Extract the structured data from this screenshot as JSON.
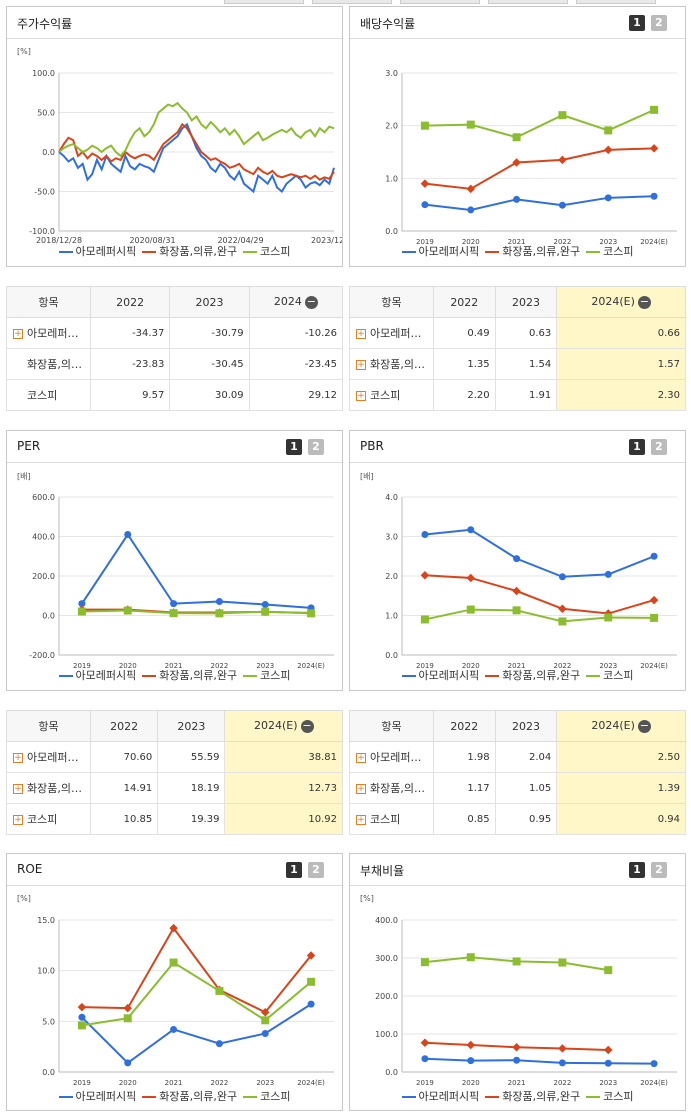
{
  "colors": {
    "series1": "#2f6fde",
    "series2": "#d9441a",
    "series3": "#8cbd2f"
  },
  "legend": [
    "아모레퍼시픽",
    "화장품,의류,완구",
    "코스피"
  ],
  "panels": {
    "stock": {
      "title": "주가수익률",
      "unit": "[%]"
    },
    "dividend": {
      "title": "배당수익률",
      "unit": ""
    },
    "per": {
      "title": "PER",
      "unit": "[배]"
    },
    "pbr": {
      "title": "PBR",
      "unit": "[배]"
    },
    "roe": {
      "title": "ROE",
      "unit": "[%]"
    },
    "debt": {
      "title": "부채비율",
      "unit": "[%]"
    }
  },
  "pager": {
    "p1": "1",
    "p2": "2"
  },
  "tables": {
    "stock": {
      "header": [
        "항목",
        "2022",
        "2023",
        "2024"
      ],
      "rows": [
        {
          "name": "아모레퍼…",
          "plus": true,
          "values": [
            "-34.37",
            "-30.79",
            "-10.26"
          ]
        },
        {
          "name": "화장품,의…",
          "plus": false,
          "values": [
            "-23.83",
            "-30.45",
            "-23.45"
          ]
        },
        {
          "name": "코스피",
          "plus": false,
          "values": [
            "9.57",
            "30.09",
            "29.12"
          ]
        }
      ]
    },
    "dividend": {
      "header": [
        "항목",
        "2022",
        "2023",
        "2024(E)"
      ],
      "rows": [
        {
          "name": "아모레퍼…",
          "plus": true,
          "values": [
            "0.49",
            "0.63",
            "0.66"
          ]
        },
        {
          "name": "화장품,의…",
          "plus": true,
          "values": [
            "1.35",
            "1.54",
            "1.57"
          ]
        },
        {
          "name": "코스피",
          "plus": true,
          "values": [
            "2.20",
            "1.91",
            "2.30"
          ]
        }
      ]
    },
    "per": {
      "header": [
        "항목",
        "2022",
        "2023",
        "2024(E)"
      ],
      "rows": [
        {
          "name": "아모레퍼…",
          "plus": true,
          "values": [
            "70.60",
            "55.59",
            "38.81"
          ]
        },
        {
          "name": "화장품,의…",
          "plus": true,
          "values": [
            "14.91",
            "18.19",
            "12.73"
          ]
        },
        {
          "name": "코스피",
          "plus": true,
          "values": [
            "10.85",
            "19.39",
            "10.92"
          ]
        }
      ]
    },
    "pbr": {
      "header": [
        "항목",
        "2022",
        "2023",
        "2024(E)"
      ],
      "rows": [
        {
          "name": "아모레퍼…",
          "plus": true,
          "values": [
            "1.98",
            "2.04",
            "2.50"
          ]
        },
        {
          "name": "화장품,의…",
          "plus": true,
          "values": [
            "1.17",
            "1.05",
            "1.39"
          ]
        },
        {
          "name": "코스피",
          "plus": true,
          "values": [
            "0.85",
            "0.95",
            "0.94"
          ]
        }
      ]
    }
  },
  "chart_data": [
    {
      "id": "stock",
      "type": "line",
      "title": "주가수익률",
      "ylabel": "[%]",
      "ylim": [
        -100,
        100
      ],
      "yticks": [
        "100.0",
        "50.0",
        "0.0",
        "-50.0",
        "-100.0"
      ],
      "xticks": [
        "2018/12/28",
        "2020/08/31",
        "2022/04/29",
        "2023/12/28"
      ],
      "series": [
        {
          "name": "아모레퍼시픽",
          "values": [
            0,
            -5,
            -12,
            -8,
            -20,
            -15,
            -35,
            -28,
            -10,
            -22,
            -5,
            -15,
            -20,
            -25,
            -5,
            -18,
            -22,
            -15,
            -18,
            -20,
            -25,
            -10,
            5,
            10,
            15,
            20,
            30,
            35,
            20,
            5,
            -5,
            -10,
            -20,
            -25,
            -15,
            -20,
            -30,
            -35,
            -25,
            -40,
            -45,
            -50,
            -30,
            -35,
            -40,
            -30,
            -45,
            -50,
            -40,
            -35,
            -30,
            -35,
            -45,
            -40,
            -38,
            -42,
            -35,
            -40,
            -20
          ]
        },
        {
          "name": "화장품,의류,완구",
          "values": [
            0,
            10,
            18,
            15,
            -5,
            0,
            -8,
            -2,
            -5,
            -10,
            -5,
            -12,
            -8,
            -10,
            0,
            -5,
            -8,
            -5,
            -3,
            -5,
            -10,
            0,
            10,
            15,
            20,
            25,
            35,
            30,
            20,
            10,
            0,
            -5,
            -10,
            -8,
            -12,
            -15,
            -20,
            -18,
            -15,
            -22,
            -25,
            -28,
            -20,
            -25,
            -28,
            -24,
            -30,
            -32,
            -30,
            -28,
            -30,
            -32,
            -30,
            -34,
            -30,
            -35,
            -32,
            -34,
            -25
          ]
        },
        {
          "name": "코스피",
          "values": [
            0,
            5,
            8,
            10,
            5,
            0,
            3,
            8,
            5,
            0,
            5,
            8,
            0,
            -5,
            2,
            15,
            25,
            30,
            20,
            25,
            35,
            50,
            55,
            60,
            58,
            62,
            55,
            50,
            40,
            45,
            35,
            30,
            38,
            32,
            25,
            30,
            22,
            28,
            20,
            10,
            15,
            20,
            25,
            15,
            18,
            22,
            25,
            28,
            25,
            30,
            22,
            18,
            25,
            28,
            20,
            30,
            25,
            32,
            30
          ]
        }
      ]
    },
    {
      "id": "dividend",
      "type": "line",
      "ylim": [
        0,
        3
      ],
      "yticks": [
        "3.0",
        "2.0",
        "1.0",
        "0.0"
      ],
      "categories": [
        "2019",
        "2020",
        "2021",
        "2022",
        "2023",
        "2024(E)"
      ],
      "series": [
        {
          "name": "아모레퍼시픽",
          "values": [
            0.5,
            0.4,
            0.6,
            0.49,
            0.63,
            0.66
          ]
        },
        {
          "name": "화장품,의류,완구",
          "values": [
            0.9,
            0.8,
            1.3,
            1.35,
            1.54,
            1.57
          ]
        },
        {
          "name": "코스피",
          "values": [
            2.0,
            2.02,
            1.78,
            2.2,
            1.91,
            2.3
          ]
        }
      ]
    },
    {
      "id": "per",
      "type": "line",
      "ylim": [
        -200,
        600
      ],
      "yticks": [
        "600.0",
        "400.0",
        "200.0",
        "0.0",
        "-200.0"
      ],
      "categories": [
        "2019",
        "2020",
        "2021",
        "2022",
        "2023",
        "2024(E)"
      ],
      "series": [
        {
          "name": "아모레퍼시픽",
          "values": [
            60,
            410,
            60,
            70.6,
            55.59,
            38.81
          ]
        },
        {
          "name": "화장품,의류,완구",
          "values": [
            30,
            30,
            15,
            14.91,
            18.19,
            12.73
          ]
        },
        {
          "name": "코스피",
          "values": [
            20,
            25,
            12,
            10.85,
            19.39,
            10.92
          ]
        }
      ]
    },
    {
      "id": "pbr",
      "type": "line",
      "ylim": [
        0,
        4
      ],
      "yticks": [
        "4.0",
        "3.0",
        "2.0",
        "1.0",
        "0.0"
      ],
      "categories": [
        "2019",
        "2020",
        "2021",
        "2022",
        "2023",
        "2024(E)"
      ],
      "series": [
        {
          "name": "아모레퍼시픽",
          "values": [
            3.05,
            3.17,
            2.44,
            1.98,
            2.04,
            2.5
          ]
        },
        {
          "name": "화장품,의류,완구",
          "values": [
            2.02,
            1.95,
            1.62,
            1.17,
            1.05,
            1.39
          ]
        },
        {
          "name": "코스피",
          "values": [
            0.9,
            1.15,
            1.13,
            0.85,
            0.95,
            0.94
          ]
        }
      ]
    },
    {
      "id": "roe",
      "type": "line",
      "ylim": [
        0,
        15
      ],
      "yticks": [
        "15.0",
        "10.0",
        "5.0",
        "0.0"
      ],
      "categories": [
        "2019",
        "2020",
        "2021",
        "2022",
        "2023",
        "2024(E)"
      ],
      "series": [
        {
          "name": "아모레퍼시픽",
          "values": [
            5.4,
            0.9,
            4.2,
            2.8,
            3.8,
            6.7
          ]
        },
        {
          "name": "화장품,의류,완구",
          "values": [
            6.4,
            6.3,
            14.2,
            8.1,
            5.9,
            11.5
          ]
        },
        {
          "name": "코스피",
          "values": [
            4.6,
            5.3,
            10.8,
            8.0,
            5.1,
            8.9
          ]
        }
      ]
    },
    {
      "id": "debt",
      "type": "line",
      "ylim": [
        0,
        400
      ],
      "yticks": [
        "400.0",
        "300.0",
        "200.0",
        "100.0",
        "0.0"
      ],
      "categories": [
        "2019",
        "2020",
        "2021",
        "2022",
        "2023",
        "2024(E)"
      ],
      "series": [
        {
          "name": "아모레퍼시픽",
          "values": [
            35,
            30,
            31,
            24,
            23,
            22
          ]
        },
        {
          "name": "화장품,의류,완구",
          "values": [
            77,
            71,
            65,
            62,
            58,
            null
          ]
        },
        {
          "name": "코스피",
          "values": [
            289,
            302,
            291,
            288,
            268,
            null
          ]
        }
      ]
    }
  ]
}
